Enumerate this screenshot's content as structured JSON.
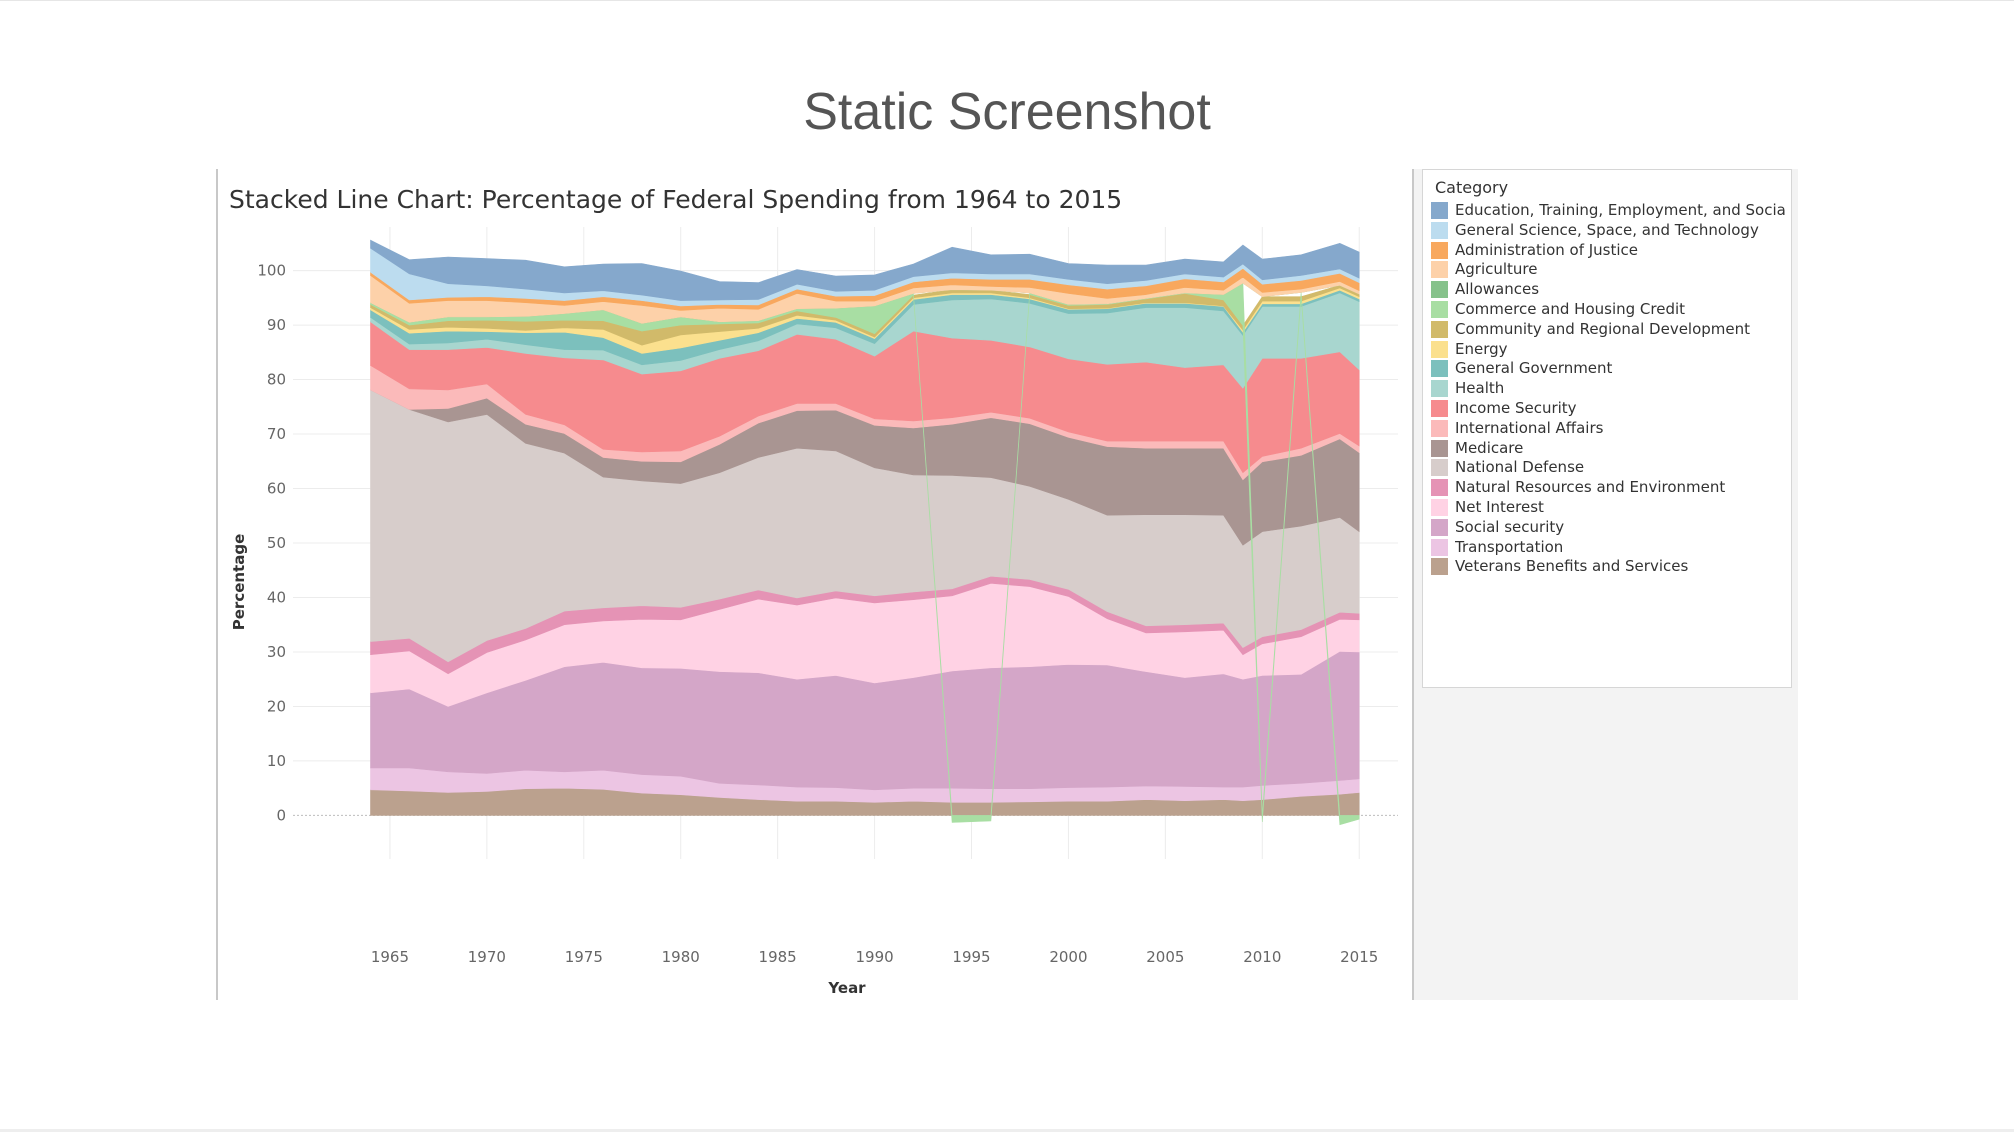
{
  "page": {
    "heading": "Static Screenshot"
  },
  "legend": {
    "title": "Category"
  },
  "chart_data": {
    "type": "area",
    "title": "Stacked Line Chart: Percentage of Federal Spending from 1964 to 2015",
    "xlabel": "Year",
    "ylabel": "Percentage",
    "xlim": [
      1960,
      2017
    ],
    "ylim": [
      -8,
      108
    ],
    "x_ticks": [
      1965,
      1970,
      1975,
      1980,
      1985,
      1990,
      1995,
      2000,
      2005,
      2010,
      2015
    ],
    "y_ticks": [
      0,
      10,
      20,
      30,
      40,
      50,
      60,
      70,
      80,
      90,
      100
    ],
    "grid": true,
    "legend_position": "right",
    "x": [
      1964,
      1966,
      1968,
      1970,
      1972,
      1974,
      1976,
      1978,
      1980,
      1982,
      1984,
      1986,
      1988,
      1990,
      1992,
      1994,
      1996,
      1998,
      2000,
      2002,
      2004,
      2006,
      2008,
      2009,
      2010,
      2012,
      2014,
      2015
    ],
    "series": [
      {
        "name": "Veterans Benefits and Services",
        "color": "#bba18e",
        "values": [
          4.7,
          4.5,
          4.2,
          4.4,
          4.9,
          5.0,
          4.8,
          4.1,
          3.8,
          3.3,
          2.9,
          2.6,
          2.6,
          2.4,
          2.6,
          2.4,
          2.4,
          2.5,
          2.6,
          2.6,
          2.9,
          2.7,
          2.9,
          2.7,
          2.9,
          3.5,
          3.9,
          4.2
        ]
      },
      {
        "name": "Transportation",
        "color": "#ecc5e3",
        "values": [
          4.0,
          4.2,
          3.8,
          3.3,
          3.4,
          3.0,
          3.5,
          3.4,
          3.4,
          2.6,
          2.7,
          2.6,
          2.5,
          2.3,
          2.4,
          2.6,
          2.5,
          2.4,
          2.5,
          2.6,
          2.5,
          2.6,
          2.3,
          2.5,
          2.6,
          2.4,
          2.5,
          2.5
        ]
      },
      {
        "name": "Social security",
        "color": "#d4a6c8",
        "values": [
          13.8,
          14.5,
          12.0,
          14.8,
          16.5,
          19.3,
          19.8,
          19.6,
          19.8,
          20.5,
          20.6,
          19.8,
          20.6,
          19.6,
          20.3,
          21.5,
          22.2,
          22.4,
          22.6,
          22.4,
          21.0,
          20.0,
          20.8,
          19.8,
          20.2,
          20.0,
          23.7,
          23.3
        ]
      },
      {
        "name": "Net Interest",
        "color": "#ffd2e4",
        "values": [
          7.0,
          7.0,
          6.0,
          7.4,
          7.4,
          7.7,
          7.6,
          8.9,
          8.9,
          11.4,
          13.5,
          13.6,
          14.2,
          14.7,
          14.3,
          13.8,
          15.5,
          14.7,
          12.5,
          8.5,
          7.1,
          8.4,
          8.0,
          4.5,
          5.8,
          6.9,
          5.9,
          5.9
        ]
      },
      {
        "name": "Natural Resources and Environment",
        "color": "#e593b5",
        "values": [
          2.4,
          2.3,
          2.2,
          2.2,
          2.1,
          2.5,
          2.4,
          2.5,
          2.3,
          1.9,
          1.7,
          1.3,
          1.3,
          1.3,
          1.4,
          1.3,
          1.3,
          1.3,
          1.3,
          1.3,
          1.3,
          1.3,
          1.3,
          1.3,
          1.3,
          1.3,
          1.3,
          1.2
        ]
      },
      {
        "name": "National Defense",
        "color": "#d7cdcb",
        "values": [
          46.2,
          42.0,
          44.0,
          41.5,
          34.0,
          29.0,
          24.0,
          22.9,
          22.7,
          23.2,
          24.3,
          27.5,
          25.7,
          23.5,
          21.5,
          20.8,
          18.1,
          17.1,
          16.5,
          17.7,
          20.4,
          20.2,
          19.8,
          18.8,
          19.3,
          19.0,
          17.4,
          15.0
        ]
      },
      {
        "name": "Medicare",
        "color": "#a99592",
        "values": [
          0,
          0,
          2.5,
          3.0,
          3.5,
          3.6,
          3.6,
          3.6,
          4.0,
          5.2,
          6.3,
          6.9,
          7.5,
          7.8,
          8.6,
          9.4,
          11.0,
          11.5,
          11.4,
          12.6,
          12.2,
          12.2,
          12.3,
          12.0,
          12.8,
          13.0,
          14.4,
          14.5
        ]
      },
      {
        "name": "International Affairs",
        "color": "#fbbaba",
        "values": [
          4.5,
          3.8,
          3.4,
          2.6,
          1.8,
          1.6,
          1.5,
          1.7,
          2.0,
          1.5,
          1.3,
          1.3,
          1.2,
          1.2,
          1.3,
          1.2,
          1.0,
          1.0,
          1.0,
          1.0,
          1.3,
          1.3,
          1.3,
          1.3,
          1.0,
          1.3,
          1.0,
          1.2
        ]
      },
      {
        "name": "Income Security",
        "color": "#f68b8e",
        "values": [
          8.0,
          7.2,
          7.4,
          6.7,
          11.2,
          12.3,
          16.4,
          14.3,
          14.7,
          14.3,
          12.0,
          12.7,
          11.8,
          11.5,
          16.5,
          14.6,
          13.2,
          13.1,
          13.4,
          14.1,
          14.5,
          13.5,
          14.0,
          15.5,
          18.0,
          16.5,
          15.0,
          14.0
        ]
      },
      {
        "name": "Health",
        "color": "#a8d6cf",
        "values": [
          0.8,
          1.0,
          1.2,
          1.5,
          1.6,
          1.5,
          1.8,
          1.7,
          1.9,
          1.6,
          1.8,
          1.9,
          2.1,
          2.3,
          4.9,
          7.0,
          7.6,
          8.0,
          8.3,
          9.4,
          10.0,
          11.0,
          9.9,
          9.7,
          9.5,
          9.5,
          10.8,
          12.5
        ]
      },
      {
        "name": "General Government",
        "color": "#7cc0bd",
        "values": [
          1.4,
          2.0,
          2.2,
          1.4,
          2.2,
          3.2,
          2.3,
          2.1,
          2.3,
          1.7,
          1.5,
          1.0,
          1.0,
          0.9,
          0.9,
          1.0,
          0.8,
          0.8,
          0.8,
          0.8,
          0.8,
          0.8,
          0.8,
          0.6,
          0.5,
          0.5,
          0.5,
          0.5
        ]
      },
      {
        "name": "Energy",
        "color": "#fbe08e",
        "values": [
          0.4,
          0.7,
          0.7,
          0.6,
          0.4,
          0.8,
          1.5,
          1.5,
          2.4,
          1.6,
          0.8,
          0.6,
          0.4,
          0.3,
          0.3,
          0.3,
          0.3,
          0.2,
          0.1,
          0.1,
          0.1,
          0.1,
          0.1,
          0.4,
          0.5,
          0.5,
          0.4,
          0.4
        ]
      },
      {
        "name": "Community and Regional Development",
        "color": "#d1ba6a",
        "values": [
          0.6,
          0.8,
          1.2,
          1.5,
          1.7,
          1.4,
          1.6,
          2.6,
          1.8,
          1.4,
          1.0,
          0.8,
          0.5,
          0.6,
          0.5,
          0.6,
          0.5,
          0.6,
          0.6,
          0.7,
          0.7,
          1.7,
          1.1,
          0.8,
          0.8,
          0.8,
          0.5,
          0.5
        ]
      },
      {
        "name": "Commerce and Housing Credit",
        "color": "#a8dea3",
        "values": [
          0.3,
          0.5,
          0.7,
          0.6,
          0.9,
          1.2,
          2.0,
          1.4,
          1.5,
          0.4,
          0.4,
          0.4,
          1.7,
          5.1,
          0.3,
          -1.3,
          -1.0,
          0.3,
          0.2,
          0.1,
          0.1,
          0.1,
          1.0,
          7.8,
          -1.2,
          0.8,
          -1.7,
          -0.7
        ]
      },
      {
        "name": "Allowances",
        "color": "#86c28b",
        "values": [
          0,
          0,
          0,
          0,
          0,
          0,
          0,
          0,
          0,
          0,
          0,
          0,
          0,
          0,
          0,
          0,
          0,
          0,
          0,
          0,
          0,
          0,
          0,
          0,
          0,
          0,
          0,
          0
        ]
      },
      {
        "name": "Agriculture",
        "color": "#fdd1a9",
        "values": [
          5.0,
          3.5,
          3.0,
          3.0,
          2.5,
          1.5,
          1.5,
          3.3,
          1.2,
          2.5,
          2.1,
          2.8,
          1.3,
          0.9,
          1.0,
          0.9,
          0.7,
          1.0,
          2.0,
          1.0,
          0.7,
          1.0,
          0.8,
          1.1,
          0.8,
          0.6,
          0.7,
          0.6
        ]
      },
      {
        "name": "Administration of Justice",
        "color": "#f8a85e",
        "values": [
          0.6,
          0.6,
          0.6,
          0.7,
          0.8,
          0.9,
          0.9,
          0.9,
          0.8,
          0.7,
          0.8,
          0.8,
          0.9,
          1.0,
          1.1,
          1.2,
          1.3,
          1.5,
          1.6,
          1.7,
          1.6,
          1.6,
          1.5,
          1.6,
          1.5,
          1.6,
          1.5,
          1.5
        ]
      },
      {
        "name": "General Science, Space, and Technology",
        "color": "#bcdcef",
        "values": [
          4.4,
          4.8,
          2.5,
          2.0,
          1.7,
          1.4,
          1.1,
          1.0,
          1.0,
          0.8,
          1.0,
          0.9,
          0.9,
          1.0,
          1.0,
          1.0,
          1.0,
          1.0,
          1.0,
          1.0,
          1.0,
          0.9,
          0.9,
          0.8,
          0.8,
          0.9,
          0.8,
          0.8
        ]
      },
      {
        "name": "Education, Training, Employment, and Social ..",
        "color": "#85a8cc",
        "values": [
          1.5,
          2.6,
          4.9,
          5.0,
          5.3,
          4.8,
          4.9,
          5.8,
          5.4,
          3.4,
          3.1,
          2.7,
          2.8,
          2.8,
          2.3,
          4.7,
          3.5,
          3.6,
          2.9,
          3.4,
          2.8,
          2.7,
          2.8,
          3.5,
          3.8,
          3.8,
          4.7,
          4.8
        ]
      }
    ]
  }
}
